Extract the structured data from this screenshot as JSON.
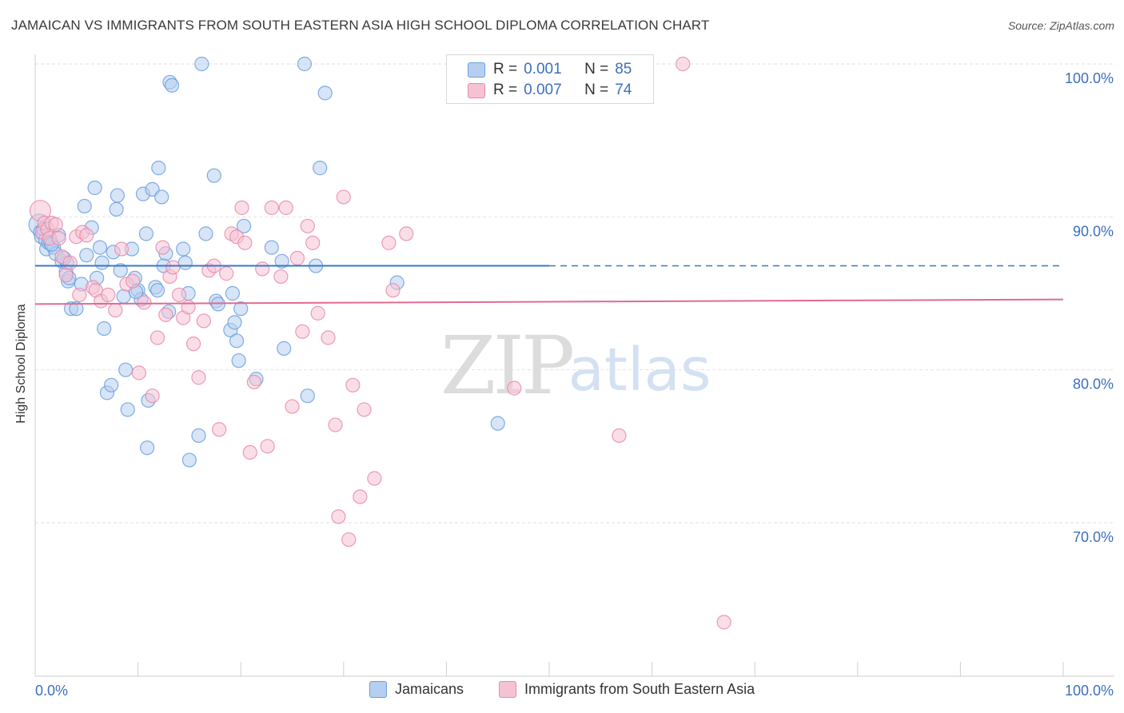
{
  "title": "JAMAICAN VS IMMIGRANTS FROM SOUTH EASTERN ASIA HIGH SCHOOL DIPLOMA CORRELATION CHART",
  "source": "Source: ZipAtlas.com",
  "watermark": {
    "zip": "ZIP",
    "atlas": "atlas"
  },
  "colors": {
    "blue": "#6a9fe0",
    "blue_fill": "#b6cff0",
    "blue_line": "#3a78c8",
    "pink": "#e98aa8",
    "pink_fill": "#f6c2d3",
    "pink_line": "#e06b92",
    "axis_text": "#3c6fc0"
  },
  "legend": {
    "rows": [
      {
        "r_label": "R =",
        "r_value": "0.001",
        "n_label": "N =",
        "n_value": "85"
      },
      {
        "r_label": "R =",
        "r_value": "0.007",
        "n_label": "N =",
        "n_value": "74"
      }
    ]
  },
  "bottom_legend": {
    "series1": "Jamaicans",
    "series2": "Immigrants from South Eastern Asia"
  },
  "chart_data": {
    "type": "scatter",
    "title": "JAMAICAN VS IMMIGRANTS FROM SOUTH EASTERN ASIA HIGH SCHOOL DIPLOMA CORRELATION CHART",
    "xlabel": "",
    "ylabel": "High School Diploma",
    "x_tick_labels": [
      "0.0%",
      "100.0%"
    ],
    "y_tick_labels": [
      "100.0%",
      "90.0%",
      "80.0%",
      "70.0%"
    ],
    "y_ticks": [
      100,
      90,
      80,
      70
    ],
    "xlim": [
      0,
      100
    ],
    "ylim": [
      60,
      101.5
    ],
    "grid": true,
    "legend_position": "top-center",
    "series": [
      {
        "name": "Jamaicans",
        "trend": {
          "x": [
            0,
            50
          ],
          "y": [
            86.8,
            86.8
          ],
          "dashed_to": 100
        },
        "points": [
          [
            0.4,
            89.5
          ],
          [
            0.5,
            89.0
          ],
          [
            0.6,
            88.7
          ],
          [
            0.8,
            89.2
          ],
          [
            1.0,
            88.5
          ],
          [
            1.1,
            87.9
          ],
          [
            1.3,
            88.3
          ],
          [
            1.5,
            88.3
          ],
          [
            1.8,
            88.0
          ],
          [
            2.0,
            87.6
          ],
          [
            2.3,
            88.8
          ],
          [
            2.6,
            87.1
          ],
          [
            3.0,
            86.4
          ],
          [
            3.1,
            87.0
          ],
          [
            3.2,
            85.8
          ],
          [
            3.5,
            84.0
          ],
          [
            4.0,
            84.0
          ],
          [
            4.5,
            85.6
          ],
          [
            5.0,
            87.5
          ],
          [
            5.5,
            89.3
          ],
          [
            4.8,
            90.7
          ],
          [
            5.8,
            91.9
          ],
          [
            6.3,
            88.0
          ],
          [
            6.5,
            87.0
          ],
          [
            6.7,
            82.7
          ],
          [
            7.0,
            78.5
          ],
          [
            7.4,
            79.0
          ],
          [
            7.6,
            87.7
          ],
          [
            7.9,
            90.5
          ],
          [
            8.0,
            91.4
          ],
          [
            8.3,
            86.5
          ],
          [
            8.6,
            84.8
          ],
          [
            8.8,
            80.0
          ],
          [
            9.0,
            77.4
          ],
          [
            9.4,
            87.9
          ],
          [
            9.7,
            86.0
          ],
          [
            10.0,
            85.2
          ],
          [
            10.3,
            84.6
          ],
          [
            10.5,
            91.5
          ],
          [
            10.8,
            88.9
          ],
          [
            10.9,
            74.9
          ],
          [
            11.0,
            78.0
          ],
          [
            11.4,
            91.8
          ],
          [
            11.7,
            85.4
          ],
          [
            11.9,
            85.2
          ],
          [
            12.0,
            93.2
          ],
          [
            12.3,
            91.3
          ],
          [
            12.7,
            87.6
          ],
          [
            13.0,
            83.8
          ],
          [
            13.1,
            98.8
          ],
          [
            13.3,
            98.6
          ],
          [
            14.4,
            87.9
          ],
          [
            14.6,
            87.0
          ],
          [
            14.9,
            85.0
          ],
          [
            15.0,
            74.1
          ],
          [
            15.9,
            75.7
          ],
          [
            16.2,
            100.0
          ],
          [
            16.6,
            88.9
          ],
          [
            17.4,
            92.7
          ],
          [
            17.6,
            84.5
          ],
          [
            17.8,
            84.3
          ],
          [
            19.0,
            82.6
          ],
          [
            19.2,
            85.0
          ],
          [
            19.4,
            83.1
          ],
          [
            19.6,
            81.9
          ],
          [
            19.8,
            80.6
          ],
          [
            20.0,
            84.0
          ],
          [
            20.3,
            89.4
          ],
          [
            21.5,
            79.4
          ],
          [
            23.0,
            88.0
          ],
          [
            24.0,
            87.1
          ],
          [
            24.2,
            81.4
          ],
          [
            26.2,
            100.0
          ],
          [
            26.5,
            78.3
          ],
          [
            27.3,
            86.8
          ],
          [
            27.7,
            93.2
          ],
          [
            28.2,
            98.1
          ],
          [
            35.2,
            85.7
          ],
          [
            45.0,
            76.5
          ],
          [
            3.3,
            86.0
          ],
          [
            1.6,
            88.2
          ],
          [
            2.8,
            87.3
          ],
          [
            6.0,
            86.0
          ],
          [
            12.5,
            86.8
          ],
          [
            9.8,
            85.1
          ]
        ]
      },
      {
        "name": "Immigrants from South Eastern Asia",
        "trend": {
          "x": [
            0,
            100
          ],
          "y": [
            84.3,
            84.6
          ]
        },
        "points": [
          [
            0.5,
            90.4
          ],
          [
            0.7,
            89.0
          ],
          [
            0.9,
            89.6
          ],
          [
            1.2,
            89.2
          ],
          [
            1.4,
            88.6
          ],
          [
            1.6,
            89.6
          ],
          [
            2.0,
            89.5
          ],
          [
            2.3,
            88.6
          ],
          [
            2.6,
            87.4
          ],
          [
            3.0,
            86.2
          ],
          [
            3.4,
            87.0
          ],
          [
            4.0,
            88.7
          ],
          [
            4.3,
            84.9
          ],
          [
            4.6,
            89.0
          ],
          [
            5.0,
            88.8
          ],
          [
            5.6,
            85.4
          ],
          [
            5.9,
            85.2
          ],
          [
            6.4,
            84.5
          ],
          [
            7.1,
            84.9
          ],
          [
            7.8,
            83.9
          ],
          [
            8.4,
            87.9
          ],
          [
            8.9,
            85.6
          ],
          [
            9.5,
            85.8
          ],
          [
            10.1,
            79.8
          ],
          [
            10.6,
            84.4
          ],
          [
            11.4,
            78.3
          ],
          [
            11.9,
            82.1
          ],
          [
            12.4,
            88.0
          ],
          [
            12.7,
            83.6
          ],
          [
            13.1,
            86.1
          ],
          [
            13.4,
            86.7
          ],
          [
            14.0,
            84.9
          ],
          [
            14.4,
            83.4
          ],
          [
            14.9,
            84.1
          ],
          [
            15.4,
            81.7
          ],
          [
            15.9,
            79.5
          ],
          [
            16.4,
            83.2
          ],
          [
            16.9,
            86.5
          ],
          [
            17.4,
            86.8
          ],
          [
            17.9,
            76.1
          ],
          [
            18.6,
            86.3
          ],
          [
            19.1,
            88.9
          ],
          [
            19.6,
            88.7
          ],
          [
            20.1,
            90.6
          ],
          [
            20.4,
            88.3
          ],
          [
            20.9,
            74.6
          ],
          [
            21.3,
            79.2
          ],
          [
            22.1,
            86.6
          ],
          [
            22.6,
            75.0
          ],
          [
            23.0,
            90.6
          ],
          [
            23.9,
            86.1
          ],
          [
            24.4,
            90.6
          ],
          [
            25.0,
            77.6
          ],
          [
            25.5,
            87.3
          ],
          [
            26.0,
            82.5
          ],
          [
            26.5,
            89.4
          ],
          [
            27.0,
            88.3
          ],
          [
            27.5,
            83.7
          ],
          [
            28.5,
            82.1
          ],
          [
            29.2,
            76.4
          ],
          [
            29.5,
            70.4
          ],
          [
            30.0,
            91.3
          ],
          [
            30.5,
            68.9
          ],
          [
            30.9,
            79.0
          ],
          [
            31.6,
            71.7
          ],
          [
            32.0,
            77.4
          ],
          [
            33.0,
            72.9
          ],
          [
            34.4,
            88.3
          ],
          [
            34.8,
            85.2
          ],
          [
            36.1,
            88.9
          ],
          [
            46.6,
            78.8
          ],
          [
            56.8,
            75.7
          ],
          [
            63.0,
            100.0
          ],
          [
            67.0,
            63.5
          ]
        ]
      }
    ]
  }
}
